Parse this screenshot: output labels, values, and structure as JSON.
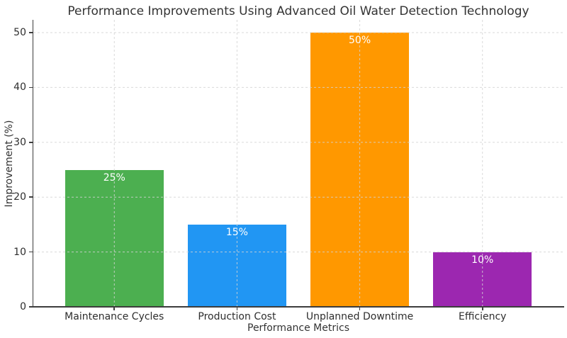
{
  "chart_data": {
    "type": "bar",
    "title": "Performance Improvements Using Advanced Oil Water Detection Technology",
    "xlabel": "Performance Metrics",
    "ylabel": "Improvement (%)",
    "categories": [
      "Maintenance Cycles",
      "Production Cost",
      "Unplanned Downtime",
      "Efficiency"
    ],
    "values": [
      25,
      15,
      50,
      10
    ],
    "bar_labels": [
      "25%",
      "15%",
      "50%",
      "10%"
    ],
    "bar_colors": [
      "#4CAF50",
      "#2196F3",
      "#FF9800",
      "#9C27B0"
    ],
    "bar_label_color": "#ffffff",
    "yticks": [
      0,
      10,
      20,
      30,
      40,
      50
    ],
    "ylim": [
      0,
      50
    ],
    "grid": "on",
    "grid_style": "dashed",
    "grid_color": "#d4d4d4",
    "legend": "none",
    "spine_color": "#3d3d3d",
    "text_color": "#333333"
  }
}
